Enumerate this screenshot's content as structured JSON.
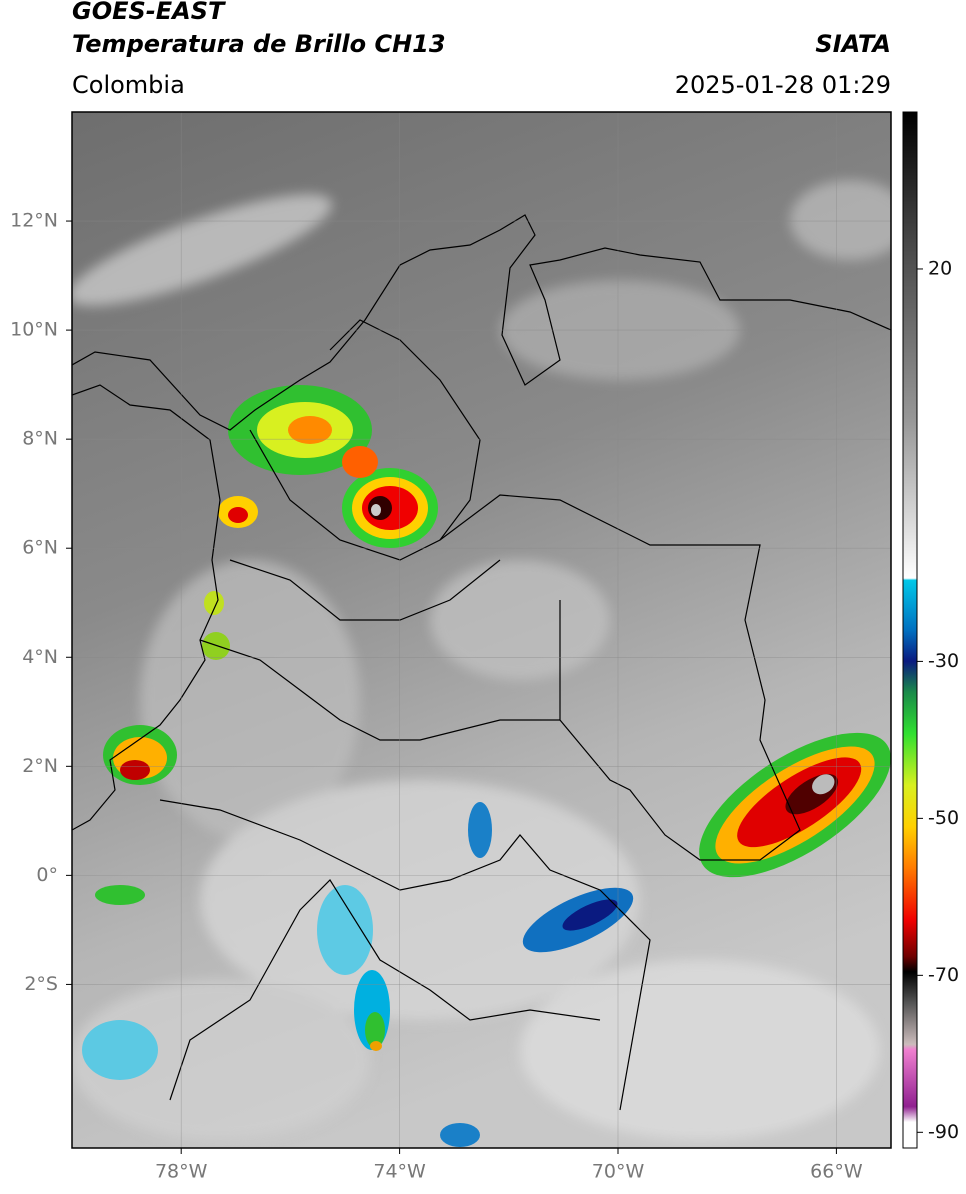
{
  "header": {
    "instrument": "GOES-EAST",
    "product": "Temperatura de Brillo CH13",
    "agency": "SIATA",
    "region": "Colombia",
    "datetime": "2025-01-28 01:29"
  },
  "map": {
    "lonlim": [
      -80,
      -65
    ],
    "latlim": [
      -5,
      14
    ],
    "xticks": [
      {
        "value": -78,
        "label": "78°W"
      },
      {
        "value": -74,
        "label": "74°W"
      },
      {
        "value": -70,
        "label": "70°W"
      },
      {
        "value": -66,
        "label": "66°W"
      }
    ],
    "yticks": [
      {
        "value": 12,
        "label": "12°N"
      },
      {
        "value": 10,
        "label": "10°N"
      },
      {
        "value": 8,
        "label": "8°N"
      },
      {
        "value": 6,
        "label": "6°N"
      },
      {
        "value": 4,
        "label": "4°N"
      },
      {
        "value": 2,
        "label": "2°N"
      },
      {
        "value": 0,
        "label": "0°"
      },
      {
        "value": -2,
        "label": "2°S"
      }
    ],
    "grid": true
  },
  "colorbar": {
    "lim": [
      -92,
      40
    ],
    "ticks": [
      20,
      -30,
      -50,
      -70,
      -90
    ]
  }
}
